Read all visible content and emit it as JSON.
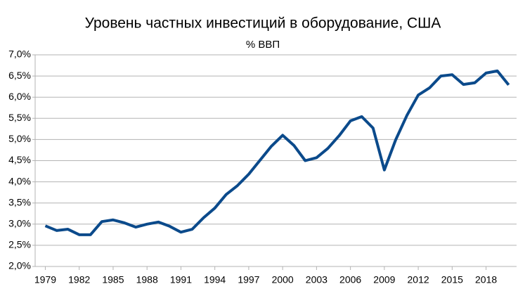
{
  "chart_data": {
    "type": "line",
    "title": "Уровень частных инвестиций в оборудование, США",
    "subtitle": "% ВВП",
    "x": [
      1979,
      1980,
      1981,
      1982,
      1983,
      1984,
      1985,
      1986,
      1987,
      1988,
      1989,
      1990,
      1991,
      1992,
      1993,
      1994,
      1995,
      1996,
      1997,
      1998,
      1999,
      2000,
      2001,
      2002,
      2003,
      2004,
      2005,
      2006,
      2007,
      2008,
      2009,
      2010,
      2011,
      2012,
      2013,
      2014,
      2015,
      2016,
      2017,
      2018,
      2019,
      2020
    ],
    "series": [
      {
        "color": "#0b4a8b",
        "values": [
          2.96,
          2.85,
          2.88,
          2.75,
          2.75,
          3.06,
          3.1,
          3.03,
          2.93,
          3.0,
          3.05,
          2.95,
          2.81,
          2.88,
          3.15,
          3.38,
          3.7,
          3.91,
          4.18,
          4.51,
          4.84,
          5.1,
          4.86,
          4.5,
          4.57,
          4.79,
          5.09,
          5.44,
          5.54,
          5.27,
          4.28,
          4.99,
          5.57,
          6.05,
          6.22,
          6.5,
          6.53,
          6.3,
          6.34,
          6.57,
          6.62,
          6.29
        ]
      }
    ],
    "xlim": [
      1978.1,
      2020.7
    ],
    "xticks": [
      1979,
      1982,
      1985,
      1988,
      1991,
      1994,
      1997,
      2000,
      2003,
      2006,
      2009,
      2012,
      2015,
      2018
    ],
    "ylim": [
      2.0,
      7.0
    ],
    "yticks": [
      {
        "value": 2.0,
        "label": "2,0%"
      },
      {
        "value": 2.5,
        "label": "2,5%"
      },
      {
        "value": 3.0,
        "label": "3,0%"
      },
      {
        "value": 3.5,
        "label": "3,5%"
      },
      {
        "value": 4.0,
        "label": "4,0%"
      },
      {
        "value": 4.5,
        "label": "4,5%"
      },
      {
        "value": 5.0,
        "label": "5,0%"
      },
      {
        "value": 5.5,
        "label": "5,5%"
      },
      {
        "value": 6.0,
        "label": "6,0%"
      },
      {
        "value": 6.5,
        "label": "6,5%"
      },
      {
        "value": 7.0,
        "label": "7,0%"
      }
    ],
    "grid": true
  }
}
